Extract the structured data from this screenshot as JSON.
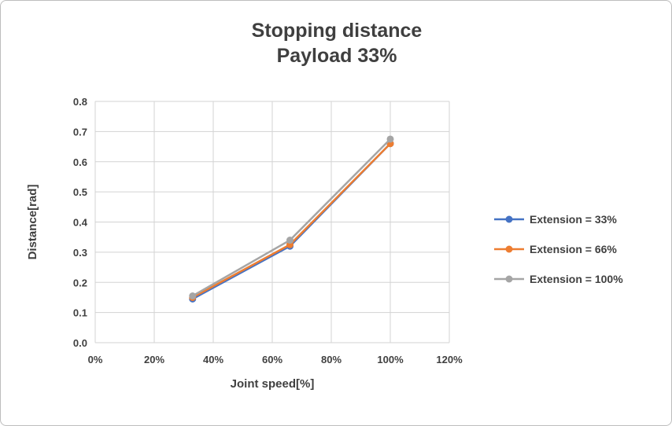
{
  "chart_data": {
    "type": "line",
    "title": "Stopping distance",
    "subtitle": "Payload 33%",
    "xlabel": "Joint speed[%]",
    "ylabel": "Distance[rad]",
    "x": [
      33,
      66,
      100
    ],
    "series": [
      {
        "name": "Extension = 33%",
        "color": "#4472C4",
        "values": [
          0.145,
          0.32,
          0.66
        ]
      },
      {
        "name": "Extension = 66%",
        "color": "#ED7D31",
        "values": [
          0.15,
          0.325,
          0.66
        ]
      },
      {
        "name": "Extension = 100%",
        "color": "#A5A5A5",
        "values": [
          0.155,
          0.34,
          0.675
        ]
      }
    ],
    "xlim": [
      0,
      120
    ],
    "ylim": [
      0,
      0.8
    ],
    "xticks": [
      "0%",
      "20%",
      "40%",
      "60%",
      "80%",
      "100%",
      "120%"
    ],
    "xtick_values": [
      0,
      20,
      40,
      60,
      80,
      100,
      120
    ],
    "yticks": [
      "0.0",
      "0.1",
      "0.2",
      "0.3",
      "0.4",
      "0.5",
      "0.6",
      "0.7",
      "0.8"
    ],
    "ytick_values": [
      0,
      0.1,
      0.2,
      0.3,
      0.4,
      0.5,
      0.6,
      0.7,
      0.8
    ],
    "grid": true,
    "grid_color": "#d3d3d3",
    "legend_position": "right"
  }
}
